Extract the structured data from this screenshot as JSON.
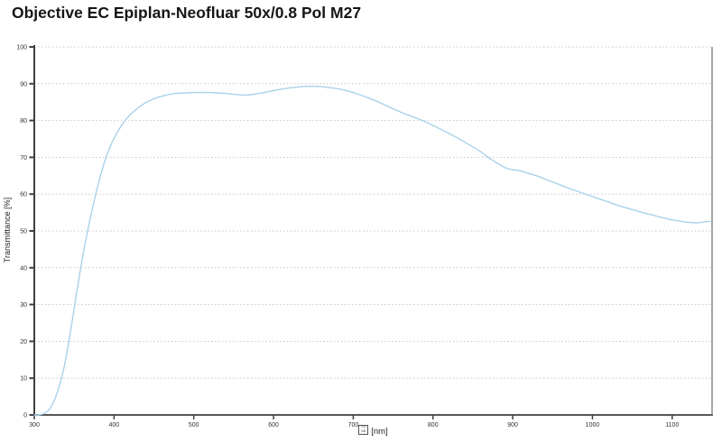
{
  "page": {
    "title": "Objective EC Epiplan-Neofluar 50x/0.8 Pol M27"
  },
  "chart_data": {
    "type": "line",
    "title": "Objective EC Epiplan-Neofluar 50x/0.8 Pol M27",
    "ylabel": "Transmittance [%]",
    "xlabel_glyph_hex_row1": "03",
    "xlabel_glyph_hex_row2": "BB",
    "xlabel_unit": "[nm]",
    "xlim": [
      300,
      1150
    ],
    "ylim": [
      0,
      100
    ],
    "x_ticks": [
      300,
      400,
      500,
      600,
      700,
      800,
      900,
      1000,
      1100
    ],
    "y_ticks": [
      0,
      10,
      20,
      30,
      40,
      50,
      60,
      70,
      80,
      90,
      100
    ],
    "grid": "horizontal-dotted",
    "legend": "none",
    "series": [
      {
        "name": "Transmittance",
        "color": "#a9d2e8",
        "points": [
          [
            300,
            0
          ],
          [
            306,
            0
          ],
          [
            310,
            0.2
          ],
          [
            314,
            0.6
          ],
          [
            317,
            1.1
          ],
          [
            320,
            1.9
          ],
          [
            323,
            3
          ],
          [
            326,
            4.4
          ],
          [
            329,
            6.2
          ],
          [
            332,
            8.3
          ],
          [
            335,
            10.7
          ],
          [
            338,
            13.6
          ],
          [
            341,
            17
          ],
          [
            344,
            20.8
          ],
          [
            347,
            24.8
          ],
          [
            350,
            28.9
          ],
          [
            353,
            33
          ],
          [
            356,
            37
          ],
          [
            359,
            41
          ],
          [
            362,
            44.6
          ],
          [
            365,
            48
          ],
          [
            368,
            51.2
          ],
          [
            371,
            54.2
          ],
          [
            374,
            57.1
          ],
          [
            377,
            59.9
          ],
          [
            380,
            62.5
          ],
          [
            383,
            65
          ],
          [
            386,
            67.3
          ],
          [
            389,
            69.4
          ],
          [
            392,
            71.2
          ],
          [
            395,
            72.8
          ],
          [
            398,
            74.3
          ],
          [
            402,
            76
          ],
          [
            406,
            77.5
          ],
          [
            410,
            78.9
          ],
          [
            415,
            80.3
          ],
          [
            420,
            81.5
          ],
          [
            425,
            82.5
          ],
          [
            430,
            83.4
          ],
          [
            435,
            84.2
          ],
          [
            440,
            84.9
          ],
          [
            445,
            85.4
          ],
          [
            450,
            85.9
          ],
          [
            455,
            86.3
          ],
          [
            460,
            86.6
          ],
          [
            465,
            86.9
          ],
          [
            470,
            87.1
          ],
          [
            475,
            87.3
          ],
          [
            480,
            87.4
          ],
          [
            490,
            87.5
          ],
          [
            500,
            87.6
          ],
          [
            510,
            87.65
          ],
          [
            520,
            87.6
          ],
          [
            530,
            87.5
          ],
          [
            540,
            87.35
          ],
          [
            550,
            87.1
          ],
          [
            558,
            86.95
          ],
          [
            565,
            86.9
          ],
          [
            572,
            87
          ],
          [
            580,
            87.3
          ],
          [
            588,
            87.6
          ],
          [
            595,
            87.9
          ],
          [
            602,
            88.2
          ],
          [
            610,
            88.5
          ],
          [
            618,
            88.8
          ],
          [
            626,
            89
          ],
          [
            634,
            89.2
          ],
          [
            642,
            89.3
          ],
          [
            652,
            89.3
          ],
          [
            660,
            89.2
          ],
          [
            668,
            89
          ],
          [
            676,
            88.8
          ],
          [
            684,
            88.5
          ],
          [
            692,
            88.1
          ],
          [
            700,
            87.6
          ],
          [
            708,
            87
          ],
          [
            716,
            86.4
          ],
          [
            724,
            85.7
          ],
          [
            732,
            85
          ],
          [
            740,
            84.2
          ],
          [
            748,
            83.4
          ],
          [
            756,
            82.6
          ],
          [
            764,
            81.9
          ],
          [
            772,
            81.2
          ],
          [
            780,
            80.6
          ],
          [
            788,
            79.9
          ],
          [
            796,
            79.1
          ],
          [
            804,
            78.2
          ],
          [
            812,
            77.4
          ],
          [
            820,
            76.5
          ],
          [
            828,
            75.6
          ],
          [
            836,
            74.6
          ],
          [
            844,
            73.6
          ],
          [
            852,
            72.6
          ],
          [
            860,
            71.5
          ],
          [
            868,
            70.2
          ],
          [
            874,
            69.3
          ],
          [
            880,
            68.5
          ],
          [
            886,
            67.7
          ],
          [
            892,
            67
          ],
          [
            898,
            66.7
          ],
          [
            904,
            66.5
          ],
          [
            910,
            66.3
          ],
          [
            916,
            65.9
          ],
          [
            922,
            65.5
          ],
          [
            930,
            65
          ],
          [
            938,
            64.3
          ],
          [
            946,
            63.6
          ],
          [
            954,
            63
          ],
          [
            962,
            62.3
          ],
          [
            970,
            61.6
          ],
          [
            978,
            61
          ],
          [
            986,
            60.4
          ],
          [
            994,
            59.8
          ],
          [
            1002,
            59.2
          ],
          [
            1010,
            58.6
          ],
          [
            1018,
            58
          ],
          [
            1026,
            57.4
          ],
          [
            1034,
            56.8
          ],
          [
            1042,
            56.3
          ],
          [
            1050,
            55.8
          ],
          [
            1058,
            55.3
          ],
          [
            1066,
            54.8
          ],
          [
            1074,
            54.4
          ],
          [
            1082,
            53.9
          ],
          [
            1090,
            53.5
          ],
          [
            1098,
            53.1
          ],
          [
            1106,
            52.8
          ],
          [
            1114,
            52.5
          ],
          [
            1122,
            52.3
          ],
          [
            1130,
            52.2
          ],
          [
            1136,
            52.3
          ],
          [
            1142,
            52.5
          ],
          [
            1148,
            52.6
          ]
        ]
      }
    ]
  },
  "colors": {
    "background": "#ffffff",
    "axis": "#3f3f3f",
    "right_border": "#8a8a8a",
    "grid": "#c6c6c6",
    "tick_text": "#333333",
    "title_text": "#161616",
    "curve": "#a9d2e8"
  }
}
